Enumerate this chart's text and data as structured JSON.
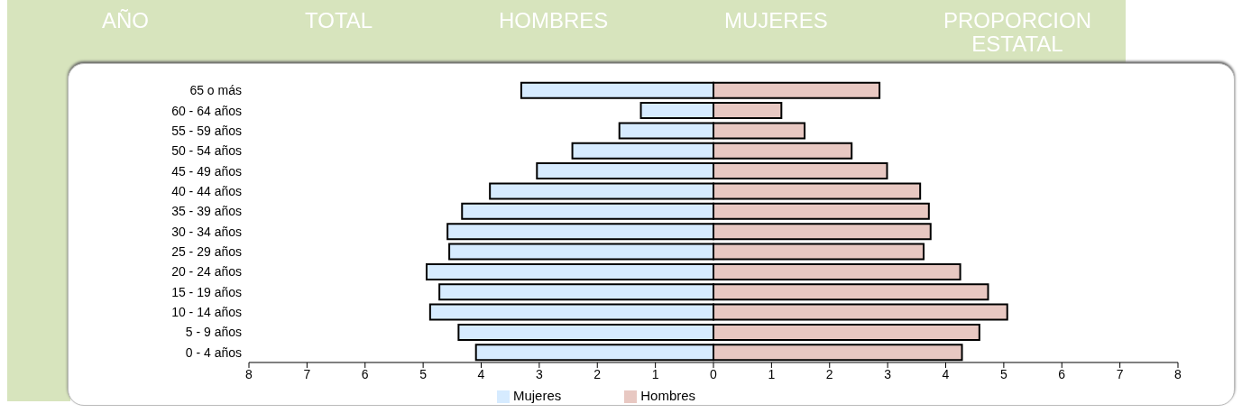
{
  "chart_data": {
    "type": "bar",
    "orientation": "horizontal",
    "annotations": [
      "AÑO",
      "TOTAL",
      "HOMBRES",
      "MUJERES",
      "PROPORCION ESTATAL"
    ],
    "categories": [
      "65 o más",
      "60 - 64 años",
      "55 - 59 años",
      "50 - 54 años",
      "45 - 49 años",
      "40 - 44 años",
      "35 - 39 años",
      "30 - 34 años",
      "25 - 29 años",
      "20 - 24 años",
      "15 - 19 años",
      "10 - 14 años",
      "5 - 9 años",
      "0 - 4 años"
    ],
    "series": [
      {
        "name": "Mujeres",
        "color": "#d6ebff",
        "values": [
          -3.31,
          -1.25,
          -1.62,
          -2.43,
          -3.04,
          -3.85,
          -4.33,
          -4.58,
          -4.55,
          -4.94,
          -4.72,
          -4.88,
          -4.39,
          -4.09
        ]
      },
      {
        "name": "Hombres",
        "color": "#e8c8c2",
        "values": [
          2.86,
          1.17,
          1.57,
          2.38,
          2.99,
          3.56,
          3.71,
          3.74,
          3.62,
          4.25,
          4.73,
          5.06,
          4.58,
          4.28
        ]
      }
    ],
    "xlim": [
      -8,
      8
    ],
    "xticks": [
      {
        "value": -8,
        "label": "8"
      },
      {
        "value": -7,
        "label": "7"
      },
      {
        "value": -6,
        "label": "6"
      },
      {
        "value": -5,
        "label": "5"
      },
      {
        "value": -4,
        "label": "4"
      },
      {
        "value": -3,
        "label": "3"
      },
      {
        "value": -2,
        "label": "2"
      },
      {
        "value": -1,
        "label": "1"
      },
      0,
      1,
      2,
      3,
      4,
      5,
      6,
      7,
      8
    ],
    "stacked": true,
    "grid": false,
    "legend": "bottom"
  }
}
